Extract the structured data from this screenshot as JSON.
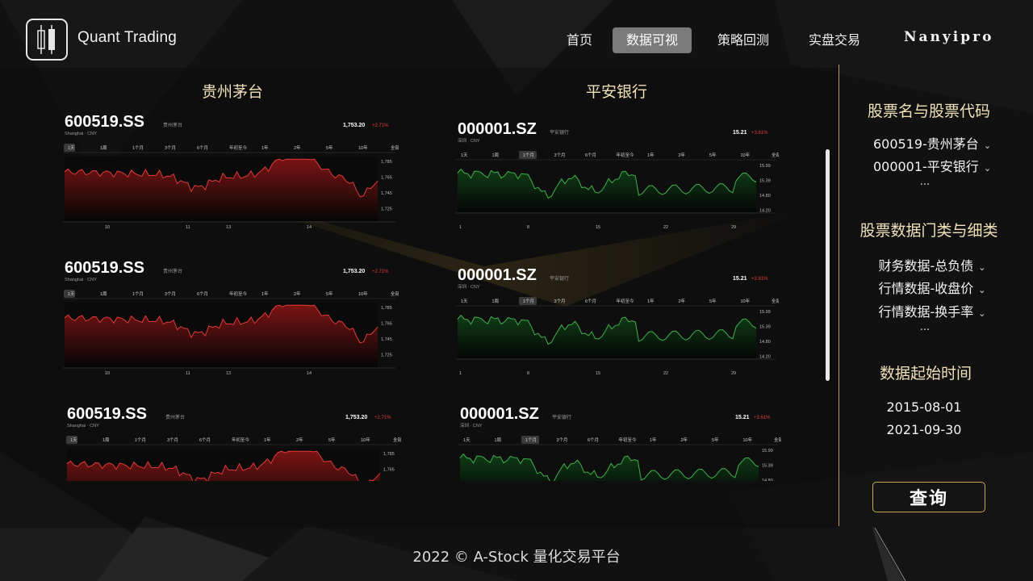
{
  "header": {
    "brand": "Quant Trading",
    "nav": [
      {
        "label": "首页",
        "active": false
      },
      {
        "label": "数据可视",
        "active": true
      },
      {
        "label": "策略回测",
        "active": false
      },
      {
        "label": "实盘交易",
        "active": false
      }
    ],
    "user": "Nanyipro"
  },
  "columns": {
    "left_title": "贵州茅台",
    "right_title": "平安银行"
  },
  "charts": {
    "maotai": {
      "symbol": "600519.SS",
      "name": "贵州茅台",
      "exchange": "Shanghai · CNY",
      "price": "1,753.20",
      "change": "+2.71%",
      "tabs": [
        "1天",
        "1周",
        "1个月",
        "3个月",
        "6个月",
        "年初至今",
        "1年",
        "2年",
        "5年",
        "10年",
        "全部"
      ],
      "active_tab": "1天",
      "y_ticks": [
        "1,785",
        "1,765",
        "1,745",
        "1,725"
      ],
      "x_ticks": [
        "10",
        "11",
        "13",
        "14"
      ],
      "line_color": "#e03a3a",
      "fill_color": "#7a1414"
    },
    "pingan": {
      "symbol": "000001.SZ",
      "name": "平安银行",
      "exchange": "深圳 · CNY",
      "price": "15.21",
      "change": "+3.61%",
      "tabs": [
        "1天",
        "1周",
        "1个月",
        "3个月",
        "6个月",
        "年初至今",
        "1年",
        "2年",
        "5年",
        "10年",
        "全部"
      ],
      "active_tab": "1个月",
      "y_ticks": [
        "15.99",
        "15.39",
        "14.80",
        "14.20"
      ],
      "x_ticks": [
        "1",
        "8",
        "15",
        "22",
        "29"
      ],
      "line_color": "#3fb14a",
      "fill_color": "#0f3d16"
    }
  },
  "sidebar": {
    "stock_title": "股票名与股票代码",
    "stocks": [
      "600519-贵州茅台",
      "000001-平安银行"
    ],
    "more": "...",
    "category_title": "股票数据门类与细类",
    "categories": [
      "财务数据-总负债",
      "行情数据-收盘价",
      "行情数据-换手率"
    ],
    "date_title": "数据起始时间",
    "start_date": "2015-08-01",
    "end_date": "2021-09-30",
    "query_label": "查询",
    "chevron": "chevron-down-icon"
  },
  "footer": "2022 © A-Stock 量化交易平台"
}
